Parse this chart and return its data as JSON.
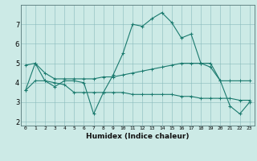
{
  "x": [
    0,
    1,
    2,
    3,
    4,
    5,
    6,
    7,
    8,
    9,
    10,
    11,
    12,
    13,
    14,
    15,
    16,
    17,
    18,
    19,
    20,
    21,
    22,
    23
  ],
  "line1": [
    3.6,
    5.0,
    4.1,
    3.8,
    4.1,
    4.1,
    4.0,
    2.4,
    3.5,
    4.4,
    5.5,
    7.0,
    6.9,
    7.3,
    7.6,
    7.1,
    6.3,
    6.5,
    5.0,
    4.8,
    4.1,
    2.8,
    2.4,
    3.0
  ],
  "line2": [
    4.9,
    5.0,
    4.5,
    4.2,
    4.2,
    4.2,
    4.2,
    4.2,
    4.3,
    4.3,
    4.4,
    4.5,
    4.6,
    4.7,
    4.8,
    4.9,
    5.0,
    5.0,
    5.0,
    5.0,
    4.1,
    4.1,
    4.1,
    4.1
  ],
  "line3": [
    3.6,
    4.1,
    4.1,
    4.0,
    3.9,
    3.5,
    3.5,
    3.5,
    3.5,
    3.5,
    3.5,
    3.4,
    3.4,
    3.4,
    3.4,
    3.4,
    3.3,
    3.3,
    3.2,
    3.2,
    3.2,
    3.2,
    3.1,
    3.1
  ],
  "color": "#1a7a6e",
  "bg_color": "#cceae6",
  "xlabel": "Humidex (Indice chaleur)",
  "ylim": [
    1.8,
    8.0
  ],
  "xlim": [
    -0.5,
    23.5
  ],
  "yticks": [
    2,
    3,
    4,
    5,
    6,
    7
  ],
  "xticks": [
    0,
    1,
    2,
    3,
    4,
    5,
    6,
    7,
    8,
    9,
    10,
    11,
    12,
    13,
    14,
    15,
    16,
    17,
    18,
    19,
    20,
    21,
    22,
    23
  ]
}
